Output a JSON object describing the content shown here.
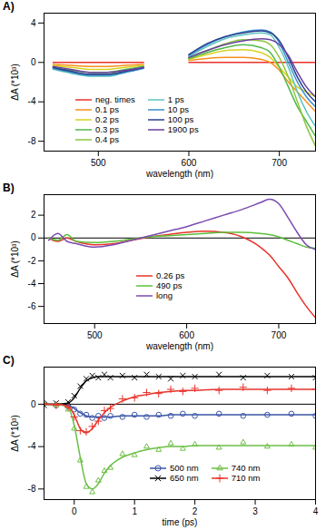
{
  "chart_data": [
    {
      "type": "line",
      "title": "A)",
      "x_label": "wavelength (nm)",
      "y_label": "ΔA (*10³)",
      "xlim": [
        440,
        740
      ],
      "xticks": [
        500,
        600,
        700
      ],
      "ylim": [
        -9,
        5
      ],
      "yticks": [
        -8,
        -4,
        0,
        4
      ],
      "grid": false,
      "x": [
        450,
        470,
        490,
        510,
        530,
        550,
        575,
        600,
        620,
        640,
        660,
        680,
        690,
        700,
        710,
        720,
        730,
        740
      ],
      "series": [
        {
          "name": "neg. times",
          "color": "#e8332a",
          "values": [
            0,
            0,
            0,
            0,
            0,
            0,
            null,
            0,
            0,
            0,
            0,
            0,
            0,
            0,
            0,
            0,
            0,
            0
          ]
        },
        {
          "name": "0.1 ps",
          "color": "#f5901e",
          "values": [
            -0.2,
            -0.3,
            -0.4,
            -0.4,
            -0.3,
            -0.2,
            null,
            0.2,
            0.4,
            0.5,
            0.5,
            0.3,
            0,
            -0.8,
            -2,
            -3,
            -4,
            -5
          ]
        },
        {
          "name": "0.2 ps",
          "color": "#d9d21f",
          "values": [
            -0.3,
            -0.5,
            -0.7,
            -0.7,
            -0.5,
            -0.3,
            null,
            0.3,
            0.8,
            1.2,
            1.3,
            1,
            0.5,
            -0.5,
            -1.5,
            -2.5,
            -3,
            -3.5
          ]
        },
        {
          "name": "0.3 ps",
          "color": "#4fb848",
          "values": [
            -0.5,
            -0.8,
            -1,
            -1,
            -0.7,
            -0.4,
            null,
            0.4,
            1,
            1.5,
            1.8,
            1.5,
            1,
            -0.5,
            -2.5,
            -4.5,
            -6,
            -7.5
          ]
        },
        {
          "name": "0.4 ps",
          "color": "#8cc63f",
          "values": [
            -0.6,
            -1,
            -1.3,
            -1.2,
            -0.9,
            -0.5,
            null,
            0.5,
            1.2,
            1.9,
            2.3,
            2.2,
            1.8,
            0.5,
            -1.5,
            -4,
            -6.5,
            -8.5
          ]
        },
        {
          "name": "1 ps",
          "color": "#5ec4c0",
          "values": [
            -0.7,
            -1.1,
            -1.4,
            -1.4,
            -1,
            -0.6,
            null,
            0.6,
            1.6,
            2.4,
            2.8,
            3,
            2.8,
            1.5,
            -0.5,
            -3,
            -5,
            -6.5
          ]
        },
        {
          "name": "10 ps",
          "color": "#3d8fd1",
          "values": [
            -0.6,
            -1,
            -1.3,
            -1.3,
            -1,
            -0.6,
            null,
            0.7,
            1.8,
            2.6,
            3.1,
            3.3,
            3.1,
            2,
            0,
            -2,
            -3.5,
            -4.5
          ]
        },
        {
          "name": "100 ps",
          "color": "#2b3f8f",
          "values": [
            -0.5,
            -0.9,
            -1.2,
            -1.2,
            -0.9,
            -0.5,
            null,
            0.8,
            1.9,
            2.6,
            3,
            3.2,
            3,
            2.2,
            0.5,
            -1.5,
            -3,
            -4
          ]
        },
        {
          "name": "1900 ps",
          "color": "#6b3fa0",
          "values": [
            -0.4,
            -0.7,
            -1,
            -1,
            -0.8,
            -0.5,
            null,
            0.5,
            1.2,
            1.8,
            2.2,
            2.4,
            2.3,
            1.8,
            0.7,
            -1,
            -2.5,
            -3.5
          ]
        }
      ]
    },
    {
      "type": "line",
      "title": "B)",
      "x_label": "wavelength (nm)",
      "y_label": "ΔA (*10³)",
      "xlim": [
        445,
        740
      ],
      "xticks": [
        500,
        600,
        700
      ],
      "ylim": [
        -7.5,
        3.8
      ],
      "yticks": [
        -6,
        -4,
        -2,
        0,
        2
      ],
      "grid": false,
      "reference_line": 0,
      "x": [
        450,
        460,
        470,
        480,
        500,
        520,
        540,
        560,
        580,
        600,
        620,
        640,
        660,
        680,
        690,
        700,
        710,
        720,
        730,
        740
      ],
      "series": [
        {
          "name": "0.26 ps",
          "color": "#e8332a",
          "values": [
            0,
            -0.3,
            0,
            -0.3,
            -0.6,
            -0.5,
            -0.2,
            0.1,
            0.3,
            0.5,
            0.6,
            0.5,
            0.1,
            -0.8,
            -1.5,
            -2.5,
            -3.5,
            -4.8,
            -6,
            -7
          ]
        },
        {
          "name": "490 ps",
          "color": "#5cbf3a",
          "values": [
            0,
            -0.2,
            0.3,
            -0.3,
            -0.4,
            -0.3,
            -0.1,
            0.1,
            0.2,
            0.3,
            0.4,
            0.5,
            0.5,
            0.4,
            0.3,
            0.1,
            -0.2,
            -0.5,
            -0.8,
            -0.9
          ]
        },
        {
          "name": "long",
          "color": "#7b4bb0",
          "values": [
            -0.2,
            0.4,
            -0.3,
            -0.5,
            -0.8,
            -0.6,
            -0.2,
            0.2,
            0.6,
            1,
            1.5,
            2,
            2.5,
            3.1,
            3.4,
            3,
            1.8,
            0.5,
            -0.6,
            -1
          ]
        }
      ]
    },
    {
      "type": "scatter",
      "title": "C)",
      "x_label": "time (ps)",
      "y_label": "ΔA (*10³)",
      "xlim": [
        -0.5,
        4
      ],
      "xticks": [
        0,
        1,
        2,
        3,
        4
      ],
      "ylim": [
        -9,
        3.5
      ],
      "yticks": [
        -8,
        -4,
        0
      ],
      "grid": false,
      "reference_line": 0,
      "x": [
        -0.5,
        -0.3,
        -0.1,
        0,
        0.1,
        0.2,
        0.3,
        0.4,
        0.5,
        0.6,
        0.8,
        1,
        1.2,
        1.4,
        1.6,
        1.8,
        2,
        2.4,
        2.8,
        3.2,
        3.6,
        4
      ],
      "series": [
        {
          "name": "500 nm",
          "color": "#3b55a8",
          "marker": "circle",
          "values": [
            0.1,
            -0.1,
            -0.2,
            -0.5,
            -0.9,
            -1,
            -1.3,
            -1.1,
            -1.3,
            -1.1,
            -1.2,
            -1,
            -1.2,
            -1,
            -1.1,
            -0.9,
            -1.1,
            -0.9,
            -1.1,
            -1,
            -0.9,
            -1.1
          ],
          "fit": [
            0,
            0,
            -0.1,
            -0.4,
            -0.8,
            -1.1,
            -1.2,
            -1.2,
            -1.2,
            -1.2,
            -1.1,
            -1.1,
            -1.1,
            -1.1,
            -1,
            -1,
            -1,
            -1,
            -1,
            -1,
            -1,
            -1
          ]
        },
        {
          "name": "650 nm",
          "color": "#000000",
          "marker": "cross",
          "values": [
            -0.1,
            0.1,
            0.2,
            0.8,
            1.7,
            2.4,
            2.7,
            2.5,
            2.8,
            2.5,
            2.7,
            2.5,
            2.8,
            2.6,
            2.4,
            2.7,
            2.6,
            2.8,
            2.5,
            2.7,
            2.6,
            2.5
          ],
          "fit": [
            0,
            0,
            0.1,
            0.6,
            1.5,
            2.2,
            2.5,
            2.6,
            2.6,
            2.6,
            2.6,
            2.6,
            2.6,
            2.6,
            2.6,
            2.6,
            2.6,
            2.6,
            2.6,
            2.6,
            2.6,
            2.6
          ]
        },
        {
          "name": "740 nm",
          "color": "#6cbf45",
          "marker": "triangle",
          "values": [
            0.1,
            -0.1,
            -0.5,
            -2.3,
            -5.3,
            -7.8,
            -8.3,
            -7.2,
            -6.3,
            -6,
            -4.7,
            -4.8,
            -4,
            -4.3,
            -3.7,
            -4.2,
            -3.8,
            -4.1,
            -3.6,
            -4,
            -3.8,
            -4.1
          ],
          "fit": [
            0,
            0,
            -0.3,
            -2,
            -5,
            -7.5,
            -8,
            -7.5,
            -6.5,
            -5.8,
            -5,
            -4.6,
            -4.3,
            -4.1,
            -4,
            -4,
            -3.9,
            -3.9,
            -3.9,
            -3.9,
            -3.9,
            -3.9
          ]
        },
        {
          "name": "710 nm",
          "color": "#e8332a",
          "marker": "plus",
          "values": [
            0.1,
            -0.1,
            -0.3,
            -1.2,
            -2.5,
            -2.6,
            -2.1,
            -1.6,
            -0.6,
            -0.4,
            0.5,
            0.6,
            1.1,
            1,
            1.4,
            1.2,
            1.5,
            1.3,
            1.6,
            1.3,
            1.5,
            1.4
          ],
          "fit": [
            0,
            0,
            -0.2,
            -1,
            -2.3,
            -2.7,
            -2.3,
            -1.5,
            -0.8,
            -0.3,
            0.3,
            0.7,
            0.9,
            1.1,
            1.2,
            1.3,
            1.3,
            1.4,
            1.4,
            1.4,
            1.4,
            1.4
          ]
        }
      ]
    }
  ]
}
